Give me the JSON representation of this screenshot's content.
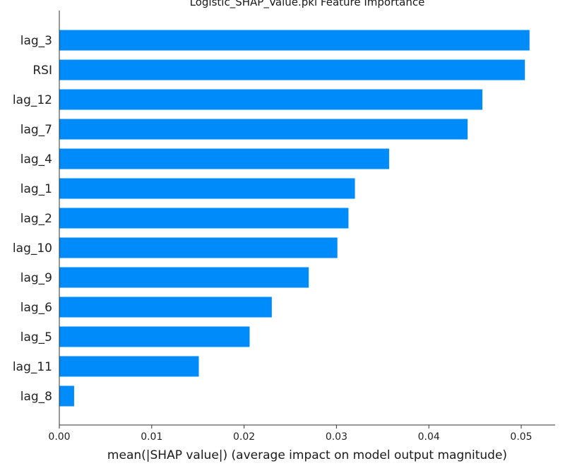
{
  "chart_data": {
    "type": "bar",
    "orientation": "horizontal",
    "title": "Logistic_SHAP_Value.pkl Feature Importance",
    "xlabel": "mean(|SHAP value|) (average impact on model output magnitude)",
    "ylabel": "",
    "xlim": [
      0.0,
      0.0535
    ],
    "xticks": [
      "0.00",
      "0.01",
      "0.02",
      "0.03",
      "0.04",
      "0.05"
    ],
    "categories": [
      "lag_3",
      "RSI",
      "lag_12",
      "lag_7",
      "lag_4",
      "lag_1",
      "lag_2",
      "lag_10",
      "lag_9",
      "lag_6",
      "lag_5",
      "lag_11",
      "lag_8"
    ],
    "values": [
      0.0509,
      0.0504,
      0.0458,
      0.0442,
      0.0357,
      0.032,
      0.0313,
      0.0301,
      0.027,
      0.023,
      0.0206,
      0.0151,
      0.0016
    ],
    "bar_color": "#008bfb",
    "grid": false
  }
}
